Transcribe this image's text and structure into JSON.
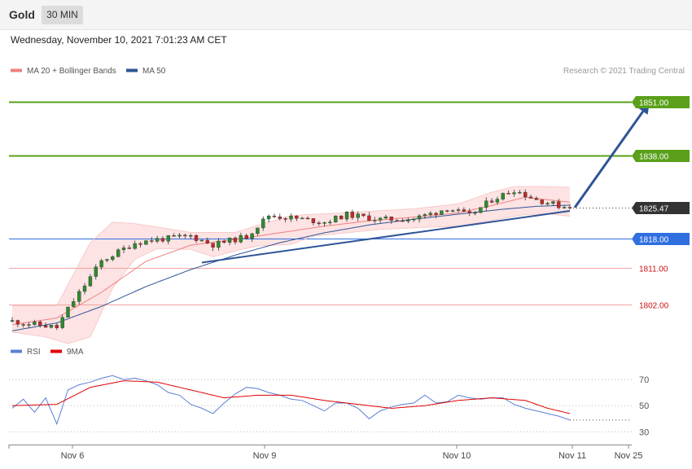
{
  "header": {
    "instrument": "Gold",
    "timeframe": "30 MIN",
    "datetime": "Wednesday, November 10, 2021 7:01:23 AM CET"
  },
  "legend": {
    "ma20": {
      "label": "MA 20 + Bollinger Bands",
      "color": "#f08080"
    },
    "ma50": {
      "label": "MA 50",
      "color": "#2f5597"
    },
    "credit": "Research © 2021 Trading Central"
  },
  "rsi_legend": {
    "rsi": {
      "label": "RSI",
      "color": "#5b7fd6"
    },
    "ma9": {
      "label": "9MA",
      "color": "#e00000"
    }
  },
  "colors": {
    "bull": "#2e8b2e",
    "bear": "#c62828",
    "band": "#fde3e3",
    "resistance": "#5aa01a",
    "pivot": "#2f6fe0",
    "support": "#f3a2a2",
    "support_text": "#cc1111",
    "trendline": "#2f5597",
    "last_price": "#333333"
  },
  "chart_data": [
    {
      "type": "candlestick",
      "ylim": [
        1793,
        1856
      ],
      "x_labels": [
        "Nov 6",
        "Nov 9",
        "Nov 10",
        "Nov 11",
        "Nov 25"
      ],
      "levels": [
        {
          "value": 1851.0,
          "label": "1851.00",
          "kind": "resistance"
        },
        {
          "value": 1838.0,
          "label": "1838.00",
          "kind": "resistance"
        },
        {
          "value": 1825.47,
          "label": "1825.47",
          "kind": "last"
        },
        {
          "value": 1818.0,
          "label": "1818.00",
          "kind": "pivot"
        },
        {
          "value": 1811.0,
          "label": "1811.00",
          "kind": "support"
        },
        {
          "value": 1802.0,
          "label": "1802.00",
          "kind": "support"
        }
      ],
      "trendline": {
        "from": [
          17,
          1812.2
        ],
        "to": [
          50,
          1824.7
        ]
      },
      "forecast_arrow": {
        "from": [
          50,
          1825.5
        ],
        "to": [
          57,
          1851.0
        ]
      },
      "anchors": [
        [
          0,
          1798.0
        ],
        [
          4,
          1796.5
        ],
        [
          5,
          1801.0
        ],
        [
          8,
          1812.5
        ],
        [
          11,
          1817.0
        ],
        [
          13,
          1817.8
        ],
        [
          16,
          1818.6
        ],
        [
          18,
          1816.5
        ],
        [
          21,
          1818.5
        ],
        [
          23,
          1823.6
        ],
        [
          25,
          1823.0
        ],
        [
          28,
          1822.0
        ],
        [
          30,
          1823.8
        ],
        [
          33,
          1822.6
        ],
        [
          36,
          1822.8
        ],
        [
          38,
          1824.4
        ],
        [
          39,
          1825.4
        ],
        [
          41,
          1823.5
        ],
        [
          43,
          1827.4
        ],
        [
          45,
          1829.8
        ],
        [
          47,
          1827.4
        ],
        [
          49,
          1826.0
        ],
        [
          50,
          1825.47
        ]
      ],
      "ma20": [
        [
          0,
          1797.2
        ],
        [
          4,
          1798.8
        ],
        [
          8,
          1805.0
        ],
        [
          12,
          1812.5
        ],
        [
          16,
          1816.4
        ],
        [
          20,
          1817.8
        ],
        [
          24,
          1819.4
        ],
        [
          28,
          1821.0
        ],
        [
          32,
          1822.3
        ],
        [
          36,
          1823.2
        ],
        [
          40,
          1824.2
        ],
        [
          43,
          1826.0
        ],
        [
          46,
          1828.0
        ],
        [
          50,
          1826.8
        ]
      ],
      "bb_upper": [
        [
          0,
          1801.8
        ],
        [
          4,
          1801.8
        ],
        [
          7,
          1817.0
        ],
        [
          9,
          1822.0
        ],
        [
          11,
          1821.6
        ],
        [
          13,
          1820.8
        ],
        [
          16,
          1819.5
        ],
        [
          20,
          1819.5
        ],
        [
          23,
          1822.0
        ],
        [
          25,
          1823.6
        ],
        [
          28,
          1824.0
        ],
        [
          32,
          1824.6
        ],
        [
          36,
          1825.2
        ],
        [
          40,
          1826.4
        ],
        [
          43,
          1829.2
        ],
        [
          45,
          1830.6
        ],
        [
          48,
          1830.6
        ],
        [
          50,
          1830.4
        ]
      ],
      "bb_lower": [
        [
          0,
          1795.4
        ],
        [
          3,
          1794.2
        ],
        [
          5,
          1792.6
        ],
        [
          7,
          1794.2
        ],
        [
          9,
          1806.0
        ],
        [
          11,
          1813.0
        ],
        [
          13,
          1815.6
        ],
        [
          16,
          1815.4
        ],
        [
          18,
          1813.6
        ],
        [
          20,
          1815.0
        ],
        [
          22,
          1816.2
        ],
        [
          25,
          1816.6
        ],
        [
          27,
          1818.6
        ],
        [
          30,
          1819.4
        ],
        [
          33,
          1820.2
        ],
        [
          36,
          1820.6
        ],
        [
          40,
          1821.0
        ],
        [
          43,
          1822.4
        ],
        [
          46,
          1823.8
        ],
        [
          48,
          1824.0
        ],
        [
          50,
          1823.4
        ]
      ],
      "ma50": [
        [
          0,
          1795.7
        ],
        [
          4,
          1797.6
        ],
        [
          8,
          1801.6
        ],
        [
          12,
          1806.4
        ],
        [
          16,
          1810.5
        ],
        [
          20,
          1814.0
        ],
        [
          24,
          1817.0
        ],
        [
          28,
          1819.4
        ],
        [
          32,
          1821.3
        ],
        [
          36,
          1822.7
        ],
        [
          40,
          1823.9
        ],
        [
          44,
          1825.1
        ],
        [
          47,
          1825.8
        ],
        [
          50,
          1826.1
        ]
      ]
    },
    {
      "type": "line",
      "name": "RSI",
      "ylim": [
        24,
        80
      ],
      "yticks": [
        30,
        50,
        70
      ],
      "rsi": [
        [
          0,
          48
        ],
        [
          1,
          55
        ],
        [
          2,
          45
        ],
        [
          3,
          56
        ],
        [
          4,
          36
        ],
        [
          5,
          62
        ],
        [
          6,
          66
        ],
        [
          7,
          68
        ],
        [
          8,
          71
        ],
        [
          9,
          73
        ],
        [
          10,
          70
        ],
        [
          11,
          71
        ],
        [
          12,
          69
        ],
        [
          13,
          66
        ],
        [
          14,
          60
        ],
        [
          15,
          58
        ],
        [
          16,
          51
        ],
        [
          17,
          48
        ],
        [
          18,
          44
        ],
        [
          19,
          52
        ],
        [
          20,
          59
        ],
        [
          21,
          64
        ],
        [
          22,
          63
        ],
        [
          23,
          60
        ],
        [
          24,
          58
        ],
        [
          25,
          55
        ],
        [
          26,
          54
        ],
        [
          27,
          50
        ],
        [
          28,
          46
        ],
        [
          29,
          52
        ],
        [
          30,
          52
        ],
        [
          31,
          48
        ],
        [
          32,
          40
        ],
        [
          33,
          46
        ],
        [
          34,
          49
        ],
        [
          35,
          51
        ],
        [
          36,
          52
        ],
        [
          37,
          58
        ],
        [
          38,
          52
        ],
        [
          39,
          53
        ],
        [
          40,
          58
        ],
        [
          41,
          56
        ],
        [
          42,
          55
        ],
        [
          43,
          56
        ],
        [
          44,
          56
        ],
        [
          45,
          51
        ],
        [
          46,
          48
        ],
        [
          47,
          46
        ],
        [
          48,
          44
        ],
        [
          49,
          42
        ],
        [
          50,
          39
        ]
      ],
      "ma9": [
        [
          0,
          50
        ],
        [
          4,
          51
        ],
        [
          7,
          64
        ],
        [
          10,
          69
        ],
        [
          13,
          68
        ],
        [
          16,
          62
        ],
        [
          19,
          56
        ],
        [
          22,
          58
        ],
        [
          25,
          58
        ],
        [
          28,
          54
        ],
        [
          31,
          51
        ],
        [
          34,
          48
        ],
        [
          37,
          50
        ],
        [
          40,
          54
        ],
        [
          43,
          56
        ],
        [
          46,
          54
        ],
        [
          48,
          48
        ],
        [
          50,
          44
        ]
      ]
    }
  ]
}
